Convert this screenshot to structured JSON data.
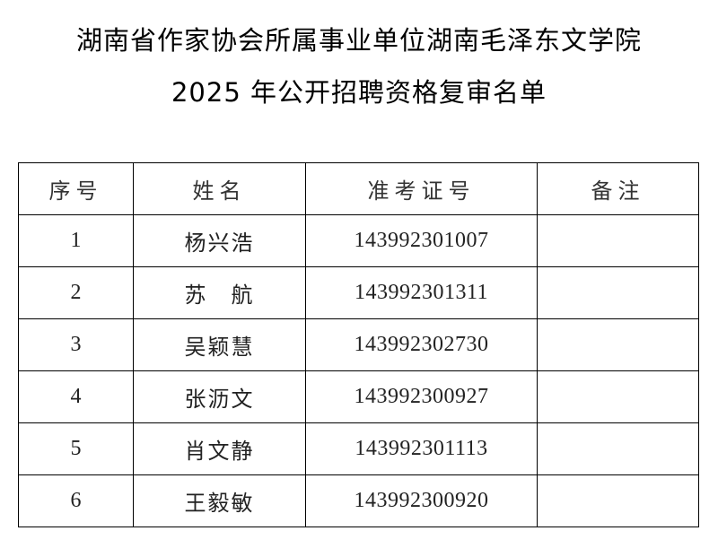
{
  "title": {
    "line1": "湖南省作家协会所属事业单位湖南毛泽东文学院",
    "line2": "2025 年公开招聘资格复审名单"
  },
  "table": {
    "headers": [
      "序号",
      "姓名",
      "准考证号",
      "备注"
    ],
    "rows": [
      {
        "no": "1",
        "name": "杨兴浩",
        "id": "143992301007",
        "note": ""
      },
      {
        "no": "2",
        "name": "苏　航",
        "id": "143992301311",
        "note": ""
      },
      {
        "no": "3",
        "name": "吴颖慧",
        "id": "143992302730",
        "note": ""
      },
      {
        "no": "4",
        "name": "张沥文",
        "id": "143992300927",
        "note": ""
      },
      {
        "no": "5",
        "name": "肖文静",
        "id": "143992301113",
        "note": ""
      },
      {
        "no": "6",
        "name": "王毅敏",
        "id": "143992300920",
        "note": ""
      }
    ]
  }
}
